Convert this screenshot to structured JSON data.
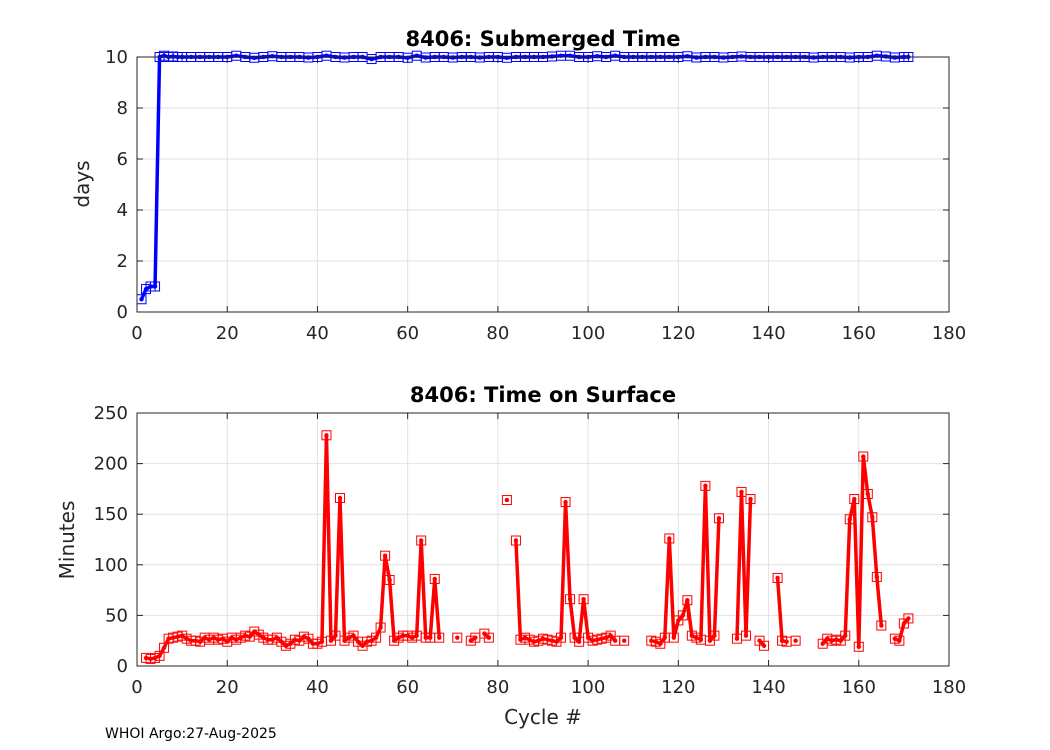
{
  "footer": "WHOI Argo:27-Aug-2025",
  "chart_data": [
    {
      "type": "line",
      "title": "8406: Submerged Time",
      "xlabel": "",
      "ylabel": "days",
      "xlim": [
        0,
        180
      ],
      "ylim": [
        0,
        10
      ],
      "xticks": [
        0,
        20,
        40,
        60,
        80,
        100,
        120,
        140,
        160,
        180
      ],
      "yticks": [
        0,
        2,
        4,
        6,
        8,
        10
      ],
      "grid": true,
      "color": "#0000ff",
      "marker": "square",
      "series": [
        {
          "x": [
            1,
            2,
            3,
            4,
            5,
            6,
            7,
            8,
            9,
            10,
            12,
            14,
            16,
            18,
            20,
            22,
            24,
            26,
            28,
            30,
            32,
            34,
            36,
            38,
            40,
            42,
            44,
            46,
            48,
            50,
            52,
            54,
            56,
            58,
            60,
            62,
            64,
            66,
            68,
            70,
            72,
            74,
            76,
            78,
            80,
            82,
            84,
            86,
            88,
            90,
            92,
            94,
            96,
            98,
            100,
            102,
            104,
            106,
            108,
            110,
            112,
            114,
            116,
            118,
            120,
            122,
            124,
            126,
            128,
            130,
            132,
            134,
            136,
            138,
            140,
            142,
            144,
            146,
            148,
            150,
            152,
            154,
            156,
            158,
            160,
            162,
            164,
            166,
            168,
            170,
            171
          ],
          "y": [
            0.5,
            0.9,
            1.0,
            1.0,
            10.0,
            10.05,
            10.0,
            10.02,
            10.0,
            10.0,
            10.0,
            10.0,
            10.0,
            10.0,
            10.0,
            10.05,
            10.0,
            9.97,
            10.0,
            10.03,
            10.0,
            10.0,
            10.0,
            9.98,
            10.0,
            10.05,
            10.0,
            9.98,
            10.0,
            10.0,
            9.92,
            10.0,
            10.0,
            10.0,
            9.97,
            10.05,
            9.98,
            10.0,
            10.0,
            9.98,
            10.0,
            10.0,
            9.98,
            10.0,
            10.0,
            9.97,
            10.0,
            10.0,
            10.0,
            10.0,
            10.02,
            10.05,
            10.05,
            10.0,
            10.0,
            10.03,
            10.0,
            10.05,
            10.0,
            10.0,
            10.0,
            10.0,
            10.0,
            10.0,
            10.0,
            10.03,
            9.98,
            10.0,
            10.0,
            9.98,
            10.0,
            10.02,
            10.0,
            10.0,
            10.0,
            10.0,
            10.0,
            10.0,
            10.0,
            9.98,
            10.0,
            10.0,
            10.0,
            9.98,
            10.0,
            10.0,
            10.05,
            10.02,
            9.98,
            10.0,
            10.0
          ]
        }
      ]
    },
    {
      "type": "line",
      "title": "8406: Time on Surface",
      "xlabel": "Cycle #",
      "ylabel": "Minutes",
      "xlim": [
        0,
        180
      ],
      "ylim": [
        0,
        250
      ],
      "xticks": [
        0,
        20,
        40,
        60,
        80,
        100,
        120,
        140,
        160,
        180
      ],
      "yticks": [
        0,
        50,
        100,
        150,
        200,
        250
      ],
      "grid": true,
      "color": "#ff0000",
      "marker": "square",
      "series": [
        {
          "segments": [
            {
              "x": [
                2,
                3,
                4,
                5,
                6,
                7,
                8,
                9,
                10,
                11,
                12,
                13,
                14,
                15,
                16,
                17,
                18,
                19,
                20,
                21,
                22,
                23,
                24,
                25,
                26,
                27,
                28,
                29,
                30,
                31,
                32,
                33,
                34,
                35,
                36,
                37,
                38,
                39,
                40,
                41,
                42,
                43,
                44,
                45,
                46,
                47,
                48,
                49,
                50,
                51,
                52,
                53,
                54,
                55,
                56,
                57,
                58,
                59,
                60,
                61,
                62,
                63,
                64,
                65,
                66,
                67
              ],
              "y": [
                8,
                7,
                8,
                10,
                18,
                27,
                28,
                29,
                30,
                27,
                25,
                25,
                24,
                28,
                26,
                28,
                26,
                27,
                24,
                28,
                26,
                28,
                30,
                29,
                34,
                31,
                28,
                26,
                26,
                28,
                24,
                20,
                22,
                26,
                25,
                29,
                27,
                22,
                22,
                24,
                228,
                25,
                30,
                166,
                25,
                28,
                30,
                24,
                20,
                24,
                25,
                28,
                38,
                109,
                85,
                25,
                28,
                30,
                30,
                28,
                30,
                124,
                28,
                28,
                86,
                28
              ]
            },
            {
              "x": [
                71
              ],
              "y": [
                28
              ]
            },
            {
              "x": [
                74,
                75
              ],
              "y": [
                25,
                28
              ]
            },
            {
              "x": [
                77,
                78
              ],
              "y": [
                32,
                28
              ]
            },
            {
              "x": [
                82
              ],
              "y": [
                164
              ]
            },
            {
              "x": [
                84,
                85,
                86,
                87,
                88,
                89,
                90,
                91,
                92,
                93,
                94,
                95,
                96,
                97,
                98,
                99,
                100,
                101,
                102,
                103,
                104,
                105,
                106
              ],
              "y": [
                124,
                26,
                28,
                26,
                24,
                25,
                27,
                26,
                25,
                24,
                28,
                162,
                66,
                28,
                24,
                66,
                28,
                25,
                26,
                27,
                28,
                30,
                25
              ]
            },
            {
              "x": [
                108
              ],
              "y": [
                25
              ]
            },
            {
              "x": [
                114,
                115,
                116,
                117,
                118,
                119,
                120,
                121,
                122,
                123,
                124,
                125,
                126,
                127,
                128,
                129
              ],
              "y": [
                25,
                24,
                22,
                28,
                126,
                28,
                45,
                50,
                65,
                30,
                28,
                26,
                178,
                25,
                30,
                146
              ]
            },
            {
              "x": [
                133,
                134,
                135,
                136
              ],
              "y": [
                27,
                172,
                30,
                165
              ]
            },
            {
              "x": [
                138,
                139
              ],
              "y": [
                25,
                20
              ]
            },
            {
              "x": [
                142,
                143,
                144
              ],
              "y": [
                87,
                25,
                24
              ]
            },
            {
              "x": [
                146
              ],
              "y": [
                25
              ]
            },
            {
              "x": [
                152,
                153,
                154,
                155,
                156,
                157,
                158,
                159,
                160,
                161,
                162,
                163,
                164,
                165
              ],
              "y": [
                22,
                27,
                25,
                26,
                25,
                30,
                145,
                165,
                19,
                207,
                170,
                147,
                88,
                40
              ]
            },
            {
              "x": [
                168,
                169,
                170,
                171
              ],
              "y": [
                27,
                25,
                42,
                47
              ]
            }
          ]
        }
      ]
    }
  ]
}
